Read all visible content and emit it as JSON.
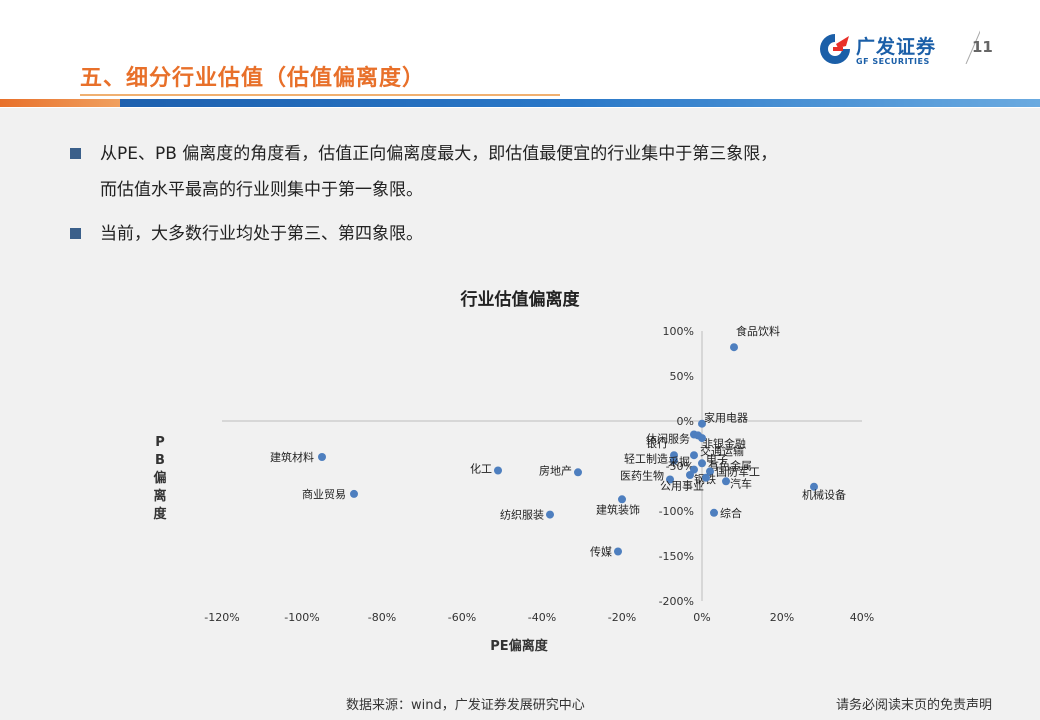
{
  "header": {
    "title": "五、细分行业估值（估值偏离度）",
    "logo_cn": "广发证券",
    "logo_en": "GF SECURITIES",
    "page_number": "11"
  },
  "bullets": [
    {
      "text": "从PE、PB 偏离度的角度看，估值正向偏离度最大，即估值最便宜的行业集中于第三象限，"
    },
    {
      "text": "而估值水平最高的行业则集中于第一象限。"
    },
    {
      "text": "当前，大多数行业均处于第三、第四象限。"
    }
  ],
  "chart_data": {
    "type": "scatter",
    "title": "行业估值偏离度",
    "xlabel": "PE偏离度",
    "ylabel": "PB偏离度",
    "xlim": [
      -120,
      40
    ],
    "ylim": [
      -200,
      100
    ],
    "x_ticks": [
      "-120%",
      "-100%",
      "-80%",
      "-60%",
      "-40%",
      "-20%",
      "0%",
      "20%",
      "40%"
    ],
    "y_ticks": [
      "100%",
      "50%",
      "0%",
      "-50%",
      "-100%",
      "-150%",
      "-200%"
    ],
    "grid": false,
    "series_color": "#4e7fbf",
    "points": [
      {
        "label": "食品饮料",
        "x": 8,
        "y": 82
      },
      {
        "label": "家用电器",
        "x": 0,
        "y": -3
      },
      {
        "label": "休闲服务",
        "x": -2,
        "y": -15
      },
      {
        "label": "非银金融",
        "x": -1,
        "y": -16
      },
      {
        "label": "电子",
        "x": 0,
        "y": -19
      },
      {
        "label": "银行",
        "x": -7,
        "y": -38
      },
      {
        "label": "交通运输",
        "x": -2,
        "y": -38
      },
      {
        "label": "轻工制造",
        "x": -7,
        "y": -44
      },
      {
        "label": "有色金属",
        "x": 0,
        "y": -47
      },
      {
        "label": "采掘",
        "x": -2,
        "y": -54
      },
      {
        "label": "国防军工",
        "x": 2,
        "y": -56
      },
      {
        "label": "钢铁",
        "x": -3,
        "y": -60
      },
      {
        "label": "医药生物",
        "x": -8,
        "y": -65
      },
      {
        "label": "公用事业",
        "x": 1,
        "y": -63
      },
      {
        "label": "汽车",
        "x": 6,
        "y": -67
      },
      {
        "label": "机械设备",
        "x": 28,
        "y": -73
      },
      {
        "label": "建筑材料",
        "x": -95,
        "y": -40
      },
      {
        "label": "化工",
        "x": -51,
        "y": -55
      },
      {
        "label": "房地产",
        "x": -31,
        "y": -57
      },
      {
        "label": "商业贸易",
        "x": -87,
        "y": -81
      },
      {
        "label": "建筑装饰",
        "x": -20,
        "y": -87
      },
      {
        "label": "纺织服装",
        "x": -38,
        "y": -104
      },
      {
        "label": "综合",
        "x": 3,
        "y": -102
      },
      {
        "label": "传媒",
        "x": -21,
        "y": -145
      }
    ]
  },
  "footer": {
    "source": "数据来源：wind，广发证券发展研究中心",
    "disclaimer": "请务必阅读末页的免责声明"
  }
}
